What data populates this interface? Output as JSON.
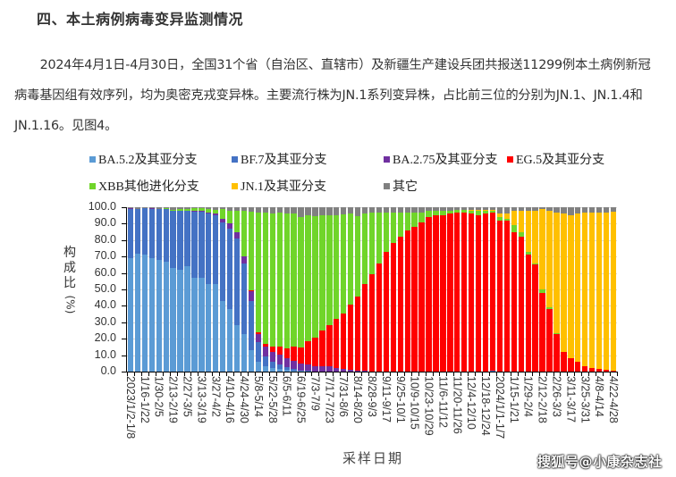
{
  "heading": "四、本土病例病毒变异监测情况",
  "paragraph": "2024年4月1日-4月30日，全国31个省（自治区、直辖市）及新疆生产建设兵团共报送11299例本土病例新冠病毒基因组有效序列，均为奥密克戎变异株。主要流行株为JN.1系列变异株，占比前三位的分别为JN.1、JN.1.4和JN.1.16。见图4。",
  "watermark": "搜狐号@小康杂志社",
  "chart_data": {
    "type": "bar",
    "stacked": true,
    "title": "",
    "xlabel": "采样日期",
    "ylabel": "构成比（%）",
    "ylim": [
      0,
      100
    ],
    "yticks": [
      "0.0",
      "10.0",
      "20.0",
      "30.0",
      "40.0",
      "50.0",
      "60.0",
      "70.0",
      "80.0",
      "90.0",
      "100.0"
    ],
    "grid": true,
    "legend_position": "top",
    "tick_labels": [
      "2023/1/2-1/8",
      "1/16-1/22",
      "1/30-2/5",
      "2/13-2/19",
      "2/27-3/5",
      "3/13-3/19",
      "3/27-4/2",
      "4/10-4/16",
      "4/24-4/30",
      "5/8-5/14",
      "5/22-5/28",
      "6/5-6/11",
      "6/19-6/25",
      "7/3-7/9",
      "7/17-7/23",
      "7/31-8/6",
      "8/14-8/20",
      "8/28-9/3",
      "9/11-9/17",
      "9/25-10/1",
      "10/9-10/15",
      "10/23-10/29",
      "11/6-11/12",
      "11/20-11/26",
      "12/4-12/10",
      "12/18-12/24",
      "2024/1/1-1/7",
      "1/15-1/21",
      "1/29-2/4",
      "2/12-2/18",
      "2/26-3/3",
      "3/11-3/17",
      "3/25-3/31",
      "4/8-4/14",
      "4/22-4/28"
    ],
    "n_bars": 69,
    "series": [
      {
        "name": "BA.5.2及其亚分支",
        "color": "#5b9bd5",
        "values": [
          69,
          72,
          71,
          69,
          68,
          67,
          63,
          62,
          64,
          57,
          57,
          53,
          53,
          43,
          38,
          28,
          23,
          13,
          6,
          3,
          2,
          1.5,
          1,
          0.5,
          0.3,
          0,
          0,
          0,
          0,
          0,
          0,
          0,
          0,
          0,
          0,
          0,
          0,
          0,
          0,
          0,
          0,
          0,
          0,
          0,
          0,
          0,
          0,
          0,
          0,
          0,
          0,
          0,
          0,
          0,
          0,
          0,
          0,
          0,
          0,
          0,
          0,
          0,
          0,
          0,
          0,
          0,
          0,
          0,
          0
        ]
      },
      {
        "name": "BF.7及其亚分支",
        "color": "#4472c4",
        "values": [
          30,
          27,
          28,
          30,
          31,
          32,
          35,
          36,
          34,
          40,
          40,
          43,
          42,
          48,
          49,
          53,
          43,
          30,
          12,
          6,
          4,
          3,
          2,
          1,
          0.5,
          0.3,
          0,
          0,
          0,
          0,
          0,
          0,
          0,
          0,
          0,
          0,
          0,
          0,
          0,
          0,
          0,
          0,
          0,
          0,
          0,
          0,
          0,
          0,
          0,
          0,
          0,
          0.5,
          0,
          0,
          0,
          0,
          0,
          0,
          0,
          0,
          0,
          0,
          0,
          0,
          0,
          0,
          0,
          0,
          0
        ]
      },
      {
        "name": "BA.2.75及其亚分支",
        "color": "#7030a0",
        "values": [
          0.3,
          0,
          0.3,
          0.5,
          0,
          0,
          0,
          0,
          0,
          0.5,
          0.5,
          0.7,
          1,
          2,
          3,
          4,
          4,
          6,
          5,
          6,
          6,
          6,
          5,
          5,
          4,
          4,
          3.5,
          3,
          3,
          2,
          1.5,
          1,
          0.5,
          0.3,
          0,
          0,
          0,
          0,
          0,
          0,
          0,
          0,
          0,
          0,
          0,
          0,
          0,
          0,
          0,
          0,
          0,
          0,
          0,
          0,
          0,
          0,
          0,
          0,
          0,
          0,
          0,
          0,
          0,
          0,
          0,
          0,
          0,
          0,
          0
        ]
      },
      {
        "name": "EG.5及其亚分支",
        "color": "#ff0000",
        "values": [
          0,
          0,
          0,
          0,
          0,
          0,
          0,
          0,
          0,
          0,
          0,
          0,
          0,
          0,
          0,
          0,
          0,
          0.5,
          1,
          2,
          3,
          5,
          6,
          9,
          10,
          14,
          17,
          22,
          25,
          30,
          34,
          40,
          45,
          53,
          59,
          66,
          73,
          78,
          82,
          86,
          88,
          91,
          94,
          95,
          95,
          96,
          97,
          97,
          96,
          95,
          96,
          97,
          92,
          92,
          85,
          82,
          71,
          65,
          48,
          38,
          23,
          12,
          8,
          6,
          3.5,
          2,
          1.5,
          1,
          0.5
        ]
      },
      {
        "name": "XBB其他进化分支",
        "color": "#70d52a",
        "values": [
          0,
          0,
          0,
          0,
          0,
          0.5,
          0.3,
          1,
          1,
          1.5,
          1.5,
          2,
          2.5,
          6,
          8,
          13,
          28,
          48,
          73,
          80,
          81,
          81,
          82,
          81,
          79,
          77,
          74,
          70,
          67,
          63,
          60,
          55,
          49,
          43,
          38,
          31,
          24,
          19,
          15,
          11,
          9,
          6,
          4,
          3,
          3,
          2,
          1.5,
          1.5,
          2,
          3,
          2,
          1,
          2,
          1,
          4,
          3,
          2,
          1,
          2,
          1,
          0.5,
          0,
          0,
          0,
          0,
          0,
          0,
          0,
          0
        ]
      },
      {
        "name": "JN.1及其亚分支",
        "color": "#ffc000",
        "values": [
          0,
          0,
          0,
          0,
          0,
          0,
          0,
          0,
          0,
          0,
          0,
          0,
          0,
          0,
          0,
          0,
          0,
          0,
          0,
          0,
          0,
          0,
          0,
          0,
          0,
          0,
          0,
          0,
          0,
          0,
          0,
          0,
          0,
          0,
          0,
          0,
          0,
          0,
          0,
          0,
          0,
          0,
          0,
          0,
          0,
          0,
          0,
          0,
          0.5,
          0.5,
          0.5,
          0.5,
          2,
          3,
          9,
          13,
          25,
          32,
          49,
          59,
          73,
          84,
          87,
          90,
          93,
          95,
          95,
          96,
          97
        ]
      },
      {
        "name": "其它",
        "color": "#808080",
        "values": [
          0.7,
          1,
          0.4,
          0.5,
          1,
          0.5,
          1.7,
          1,
          1,
          0.5,
          0.5,
          1.3,
          1.5,
          1,
          2,
          2,
          2,
          2.5,
          3,
          3,
          4,
          3.5,
          4,
          3.5,
          6.2,
          4.7,
          5.5,
          5,
          5,
          5,
          4.5,
          4,
          5.5,
          3.7,
          3,
          3,
          3,
          3,
          3,
          3,
          3,
          3,
          2,
          2,
          2,
          2,
          1.5,
          1.5,
          1.5,
          1.5,
          1.5,
          1.5,
          4,
          4,
          2,
          2,
          2,
          2,
          1,
          2,
          3.5,
          4,
          5,
          4,
          3.5,
          3,
          3.5,
          3,
          2.5
        ]
      }
    ]
  }
}
